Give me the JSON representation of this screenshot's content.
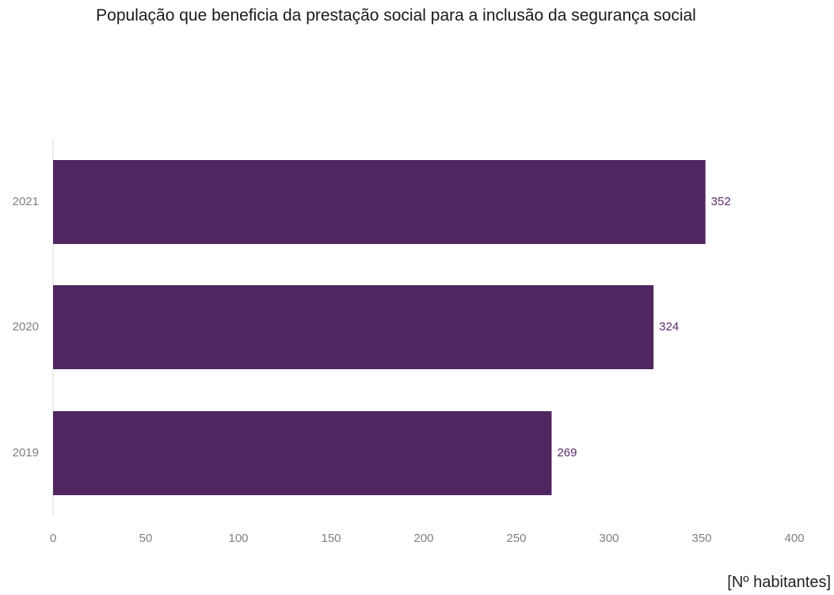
{
  "chart_data": {
    "type": "bar",
    "orientation": "horizontal",
    "title": "População que beneficia da prestação social para a inclusão da segurança social",
    "categories": [
      "2021",
      "2020",
      "2019"
    ],
    "values": [
      352,
      324,
      269
    ],
    "data_labels": [
      "352",
      "324",
      "269"
    ],
    "xlim": [
      0,
      400
    ],
    "x_ticks": [
      "0",
      "50",
      "100",
      "150",
      "200",
      "250",
      "300",
      "350",
      "400"
    ],
    "xlabel": "[Nº habitantes]",
    "ylabel": "",
    "grid": false,
    "legend": "none",
    "colors": {
      "bar": "#4f2660",
      "data_label": "#5a2a6e",
      "axis_line": "#d9d9d9",
      "tick_text": "#7f7f7f"
    }
  }
}
